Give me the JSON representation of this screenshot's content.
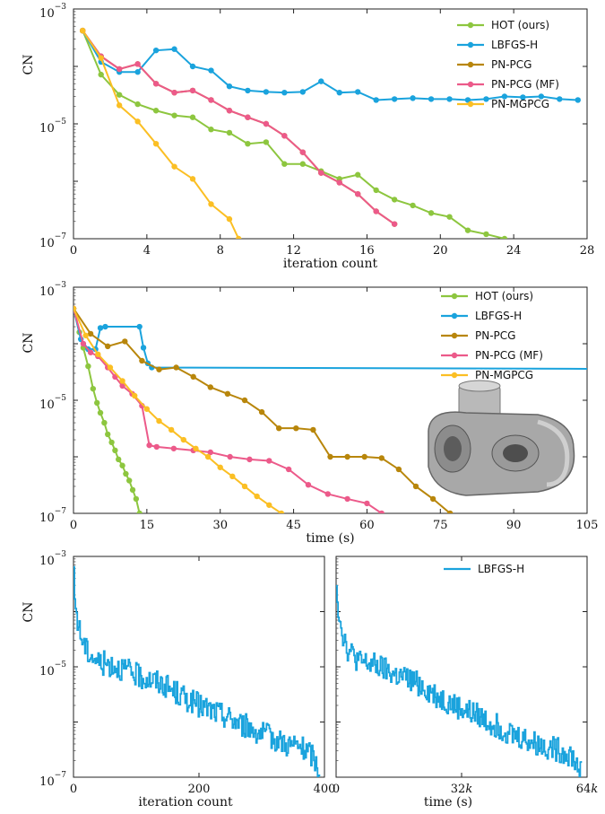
{
  "chart_data": [
    {
      "type": "line",
      "ylabel": "CN",
      "xlabel": "iteration count",
      "yscale": "log",
      "ylim": [
        1e-07,
        0.001
      ],
      "xlim": [
        0,
        28
      ],
      "xticks": [
        "0",
        "4",
        "8",
        "12",
        "16",
        "20",
        "24",
        "28"
      ],
      "yticks": [
        "10^-3",
        "10^-5",
        "10^-7"
      ],
      "legend": "top-right",
      "series": [
        {
          "name": "HOT (ours)",
          "color": "#8dc63f",
          "x": [
            0.5,
            1.5,
            2.5,
            3.5,
            4.5,
            5.5,
            6.5,
            7.5,
            8.5,
            9.5,
            10.5,
            11.5,
            12.5,
            13.5,
            14.5,
            15.5,
            16.5,
            17.5,
            18.5,
            19.5,
            20.5,
            21.5,
            22.5,
            23.5
          ],
          "y": [
            0.00042,
            7.2e-05,
            3.2e-05,
            2.2e-05,
            1.7e-05,
            1.4e-05,
            1.3e-05,
            8e-06,
            7e-06,
            4.5e-06,
            4.8e-06,
            2e-06,
            2e-06,
            1.5e-06,
            1.1e-06,
            1.3e-06,
            7e-07,
            4.8e-07,
            3.8e-07,
            2.8e-07,
            2.4e-07,
            1.4e-07,
            1.2e-07,
            1e-07
          ]
        },
        {
          "name": "LBFGS-H",
          "color": "#1aa3dd",
          "x": [
            0.5,
            1.5,
            2.5,
            3.5,
            4.5,
            5.5,
            6.5,
            7.5,
            8.5,
            9.5,
            10.5,
            11.5,
            12.5,
            13.5,
            14.5,
            15.5,
            16.5,
            17.5,
            18.5,
            19.5,
            20.5,
            21.5,
            22.5,
            23.5,
            24.5,
            25.5,
            26.5,
            27.5
          ],
          "y": [
            0.00042,
            0.00012,
            8e-05,
            8e-05,
            0.00019,
            0.0002,
            0.0001,
            8.5e-05,
            4.5e-05,
            3.8e-05,
            3.6e-05,
            3.5e-05,
            3.6e-05,
            5.5e-05,
            3.5e-05,
            3.6e-05,
            2.6e-05,
            2.7e-05,
            2.8e-05,
            2.7e-05,
            2.7e-05,
            2.6e-05,
            2.7e-05,
            3e-05,
            2.9e-05,
            3e-05,
            2.7e-05,
            2.6e-05
          ]
        },
        {
          "name": "PN-PCG",
          "color": "#b8860b",
          "x": [
            0.5,
            1.5,
            2.5,
            3.5,
            4.5,
            5.5,
            6.5,
            7.5,
            8.5,
            9.5,
            10.5,
            11.5,
            12.5,
            13.5,
            14.5,
            15.5,
            16.5,
            17.5
          ],
          "y": [
            0.00042,
            0.00015,
            9e-05,
            0.00011,
            5e-05,
            3.5e-05,
            3.8e-05,
            2.6e-05,
            1.7e-05,
            1.3e-05,
            1e-05,
            6.2e-06,
            3.2e-06,
            1.4e-06,
            9.5e-07,
            6e-07,
            3e-07,
            1.8e-07
          ]
        },
        {
          "name": "PN-PCG (MF)",
          "color": "#ec5a8a",
          "x": [
            0.5,
            1.5,
            2.5,
            3.5,
            4.5,
            5.5,
            6.5,
            7.5,
            8.5,
            9.5,
            10.5,
            11.5,
            12.5,
            13.5,
            14.5,
            15.5,
            16.5,
            17.5
          ],
          "y": [
            0.00042,
            0.00015,
            9e-05,
            0.00011,
            5e-05,
            3.5e-05,
            3.8e-05,
            2.6e-05,
            1.7e-05,
            1.3e-05,
            1e-05,
            6.2e-06,
            3.2e-06,
            1.4e-06,
            9.5e-07,
            6e-07,
            3e-07,
            1.8e-07
          ]
        },
        {
          "name": "PN-MGPCG",
          "color": "#fbbf24",
          "x": [
            0.5,
            1.5,
            2.5,
            3.5,
            4.5,
            5.5,
            6.5,
            7.5,
            8.5,
            9.0
          ],
          "y": [
            0.00042,
            0.00014,
            2.1e-05,
            1.1e-05,
            4.5e-06,
            1.8e-06,
            1.1e-06,
            4e-07,
            2.2e-07,
            1e-07
          ]
        }
      ]
    },
    {
      "type": "line",
      "ylabel": "CN",
      "xlabel": "time (s)",
      "yscale": "log",
      "ylim": [
        1e-07,
        0.001
      ],
      "xlim": [
        0,
        105
      ],
      "xticks": [
        "0",
        "15",
        "30",
        "45",
        "60",
        "75",
        "90",
        "105"
      ],
      "yticks": [
        "10^-3",
        "10^-5",
        "10^-7"
      ],
      "legend": "top-right",
      "series": [
        {
          "name": "HOT (ours)",
          "color": "#8dc63f",
          "x": [
            0,
            1.2,
            2.0,
            3.0,
            4.0,
            4.8,
            5.5,
            6.3,
            7.0,
            7.8,
            8.5,
            9.2,
            10.0,
            10.7,
            11.4,
            12.1,
            12.8,
            13.5
          ],
          "y": [
            0.00042,
            0.00016,
            8.5e-05,
            4e-05,
            1.6e-05,
            9e-06,
            6e-06,
            4e-06,
            2.5e-06,
            1.8e-06,
            1.3e-06,
            9e-07,
            7e-07,
            5e-07,
            3.8e-07,
            2.6e-07,
            1.8e-07,
            1e-07
          ]
        },
        {
          "name": "LBFGS-H",
          "color": "#1aa3dd",
          "x": [
            0,
            1.5,
            3.0,
            4.5,
            5.5,
            6.5,
            13.5,
            14.3,
            15.2,
            16.0,
            105
          ],
          "y": [
            0.00042,
            0.00012,
            8e-05,
            8e-05,
            0.00019,
            0.0002,
            0.0002,
            8.5e-05,
            4.5e-05,
            3.8e-05,
            3.6e-05
          ]
        },
        {
          "name": "PN-PCG",
          "color": "#b8860b",
          "x": [
            0,
            3.5,
            7.0,
            10.5,
            14.0,
            17.5,
            21.0,
            24.5,
            28.0,
            31.5,
            35.0,
            38.5,
            42.0,
            45.5,
            49.0,
            52.5,
            56.0,
            59.5,
            63.0,
            66.5,
            70.0,
            73.5,
            77.0
          ],
          "y": [
            0.00042,
            0.00015,
            9e-05,
            0.00011,
            5e-05,
            3.5e-05,
            3.8e-05,
            2.6e-05,
            1.7e-05,
            1.3e-05,
            1e-05,
            6.2e-06,
            3.2e-06,
            3.2e-06,
            3e-06,
            1e-06,
            1e-06,
            1e-06,
            9.5e-07,
            6e-07,
            3e-07,
            1.8e-07,
            1e-07
          ]
        },
        {
          "name": "PN-PCG (MF)",
          "color": "#ec5a8a",
          "x": [
            0,
            2.0,
            3.5,
            5.0,
            7.0,
            8.5,
            10.0,
            12.0,
            14.0,
            15.5,
            17.0,
            20.5,
            24.5,
            28.0,
            32.0,
            36.0,
            40.0,
            44.0,
            48.0,
            52.0,
            56.0,
            60.0,
            63.0
          ],
          "y": [
            0.00042,
            0.0001,
            7e-05,
            6e-05,
            3.8e-05,
            2.6e-05,
            1.8e-05,
            1.3e-05,
            8e-06,
            1.6e-06,
            1.5e-06,
            1.4e-06,
            1.3e-06,
            1.2e-06,
            1e-06,
            9e-07,
            8.5e-07,
            6e-07,
            3.2e-07,
            2.2e-07,
            1.8e-07,
            1.5e-07,
            1e-07
          ]
        },
        {
          "name": "PN-MGPCG",
          "color": "#fbbf24",
          "x": [
            0,
            2.5,
            5.0,
            7.5,
            10.0,
            12.5,
            15.0,
            17.5,
            20.0,
            22.5,
            25.0,
            27.5,
            30.0,
            32.5,
            35.0,
            37.5,
            40.0,
            42.5
          ],
          "y": [
            0.00042,
            0.00014,
            6.5e-05,
            3.8e-05,
            2.2e-05,
            1.2e-05,
            7e-06,
            4.3e-06,
            3e-06,
            2e-06,
            1.4e-06,
            1e-06,
            6.5e-07,
            4.5e-07,
            3e-07,
            2e-07,
            1.4e-07,
            1e-07
          ]
        }
      ]
    },
    {
      "type": "line",
      "ylabel": "CN",
      "xlabel": "iteration count",
      "yscale": "log",
      "ylim": [
        1e-07,
        0.001
      ],
      "xlim": [
        0,
        400
      ],
      "xticks": [
        "0",
        "200",
        "400"
      ],
      "yticks": [
        "10^-3",
        "10^-5",
        "10^-7"
      ],
      "series": [
        {
          "name": "LBFGS-H",
          "color": "#1aa3dd",
          "noisy": true,
          "anchors_x": [
            0,
            2,
            5,
            10,
            20,
            40,
            60,
            80,
            100,
            120,
            140,
            160,
            180,
            200,
            220,
            240,
            260,
            280,
            300,
            320,
            340,
            360,
            380,
            392
          ],
          "anchors_y": [
            0.0004,
            0.00015,
            8e-05,
            4e-05,
            2e-05,
            1.2e-05,
            1.1e-05,
            9e-06,
            7e-06,
            6e-06,
            5e-06,
            3.5e-06,
            2.6e-06,
            2e-06,
            1.6e-06,
            1.3e-06,
            1e-06,
            8e-07,
            6e-07,
            5e-07,
            4e-07,
            3.5e-07,
            2.5e-07,
            1.2e-07
          ]
        }
      ]
    },
    {
      "type": "line",
      "xlabel": "time (s)",
      "yscale": "log",
      "ylim": [
        1e-07,
        0.001
      ],
      "xlim": [
        0,
        64000
      ],
      "xticks": [
        "0",
        "32k",
        "64k"
      ],
      "legend": "top-right",
      "series": [
        {
          "name": "LBFGS-H",
          "color": "#1aa3dd",
          "noisy": true,
          "anchors_x": [
            0,
            300,
            800,
            1600,
            3000,
            6000,
            9000,
            12000,
            15000,
            18000,
            21000,
            24000,
            27000,
            30000,
            33000,
            36000,
            39000,
            42000,
            45000,
            48000,
            51000,
            54000,
            57000,
            60000,
            62500
          ],
          "anchors_y": [
            0.0004,
            0.00015,
            8e-05,
            4e-05,
            2e-05,
            1.2e-05,
            1.1e-05,
            9e-06,
            7e-06,
            6e-06,
            5e-06,
            3.5e-06,
            2.6e-06,
            2e-06,
            1.6e-06,
            1.3e-06,
            1e-06,
            8e-07,
            6e-07,
            5e-07,
            4e-07,
            3.5e-07,
            3e-07,
            2.5e-07,
            1.2e-07
          ]
        }
      ]
    }
  ]
}
